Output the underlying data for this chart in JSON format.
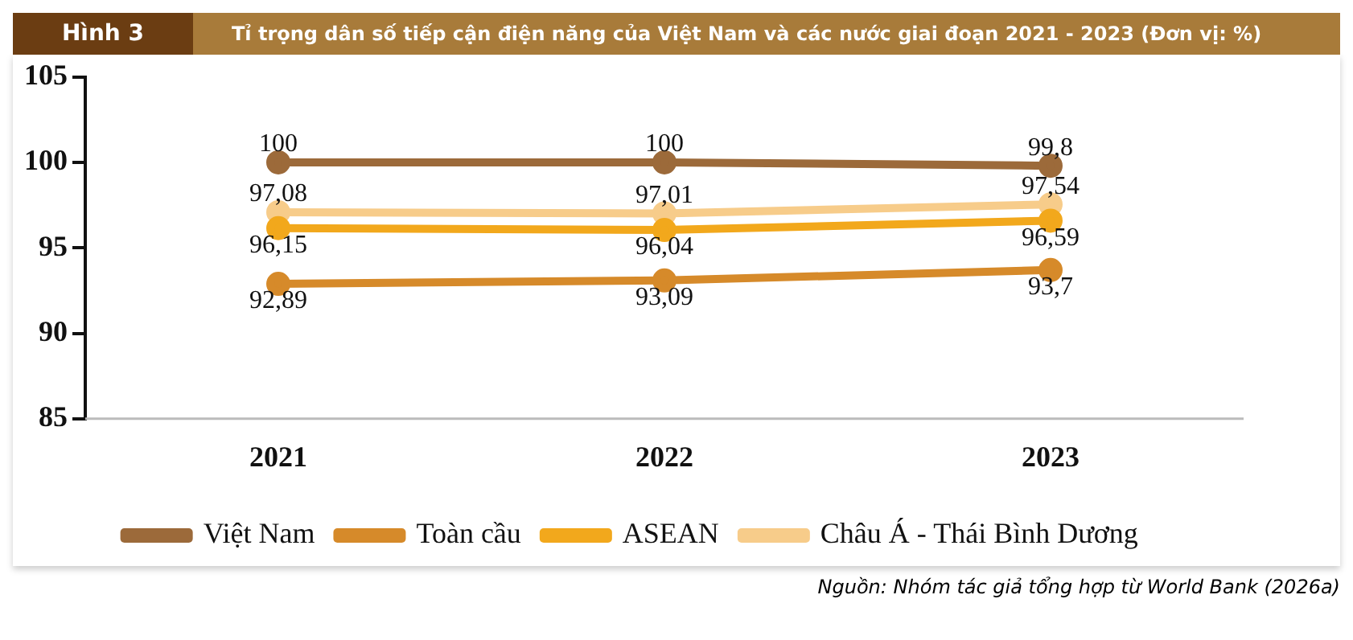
{
  "chart_data": {
    "type": "line",
    "title": "Hình 3",
    "subtitle": "Tỉ trọng dân số tiếp cận điện năng của Việt Nam và các nước giai đoạn 2021 - 2023 (Đơn vị: %)",
    "categories": [
      "2021",
      "2022",
      "2023"
    ],
    "series": [
      {
        "name": "Việt Nam",
        "color": "#9c6a3a",
        "values": [
          100,
          100,
          99.8
        ],
        "value_labels": [
          "100",
          "100",
          "99,8"
        ]
      },
      {
        "name": "Toàn cầu",
        "color": "#d68a2a",
        "values": [
          92.89,
          93.09,
          93.7
        ],
        "value_labels": [
          "92,89",
          "93,09",
          "93,7"
        ]
      },
      {
        "name": "ASEAN",
        "color": "#f2a81c",
        "values": [
          96.15,
          96.04,
          96.59
        ],
        "value_labels": [
          "96,15",
          "96,04",
          "96,59"
        ]
      },
      {
        "name": "Châu Á - Thái Bình Dương",
        "color": "#f7cc8a",
        "values": [
          97.08,
          97.01,
          97.54
        ],
        "value_labels": [
          "97,08",
          "97,01",
          "97,54"
        ]
      }
    ],
    "ylim": [
      85,
      105
    ],
    "yticks": [
      85,
      90,
      95,
      100,
      105
    ],
    "grid": false,
    "legend": "bottom",
    "marker": "circle",
    "line_style": "solid",
    "annotations": [
      "Nguồn: Nhóm tác giả tổng hợp từ World Bank (2026a)"
    ]
  }
}
